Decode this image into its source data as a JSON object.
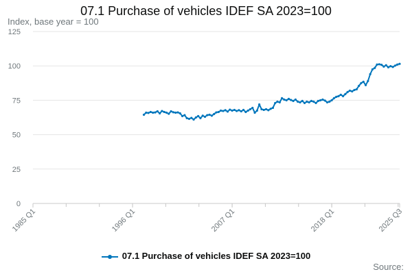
{
  "chart_data": {
    "type": "line",
    "title": "07.1 Purchase of vehicles IDEF SA 2023=100",
    "unit_label": "Index, base year = 100",
    "source_label": "Source:",
    "legend": "07.1 Purchase of vehicles IDEF SA 2023=100",
    "ylim": [
      0,
      125
    ],
    "yticks": [
      0,
      25,
      50,
      75,
      100,
      125
    ],
    "xticks": [
      "1985 Q1",
      "1996 Q1",
      "2007 Q1",
      "2018 Q1",
      "2025 Q3"
    ],
    "xtick_years": [
      1985.0,
      1996.0,
      2007.0,
      2018.0,
      2025.5
    ],
    "xrange": [
      1985.0,
      2025.5
    ],
    "grid": true,
    "legend_position": "bottom",
    "color": "#0076bc",
    "series": [
      {
        "name": "07.1 Purchase of vehicles IDEF SA 2023=100",
        "points": [
          [
            1997.25,
            64.5
          ],
          [
            1997.5,
            66.0
          ],
          [
            1997.75,
            65.8
          ],
          [
            1998.0,
            66.5
          ],
          [
            1998.25,
            66.0
          ],
          [
            1998.5,
            66.2
          ],
          [
            1998.75,
            67.0
          ],
          [
            1999.0,
            65.5
          ],
          [
            1999.25,
            67.2
          ],
          [
            1999.5,
            66.5
          ],
          [
            1999.75,
            66.0
          ],
          [
            2000.0,
            65.2
          ],
          [
            2000.25,
            67.0
          ],
          [
            2000.5,
            66.3
          ],
          [
            2000.75,
            66.0
          ],
          [
            2001.0,
            66.2
          ],
          [
            2001.25,
            65.5
          ],
          [
            2001.5,
            63.5
          ],
          [
            2001.75,
            64.2
          ],
          [
            2002.0,
            62.0
          ],
          [
            2002.25,
            61.5
          ],
          [
            2002.5,
            62.2
          ],
          [
            2002.75,
            61.0
          ],
          [
            2003.0,
            62.5
          ],
          [
            2003.25,
            63.5
          ],
          [
            2003.5,
            62.0
          ],
          [
            2003.75,
            63.8
          ],
          [
            2004.0,
            63.0
          ],
          [
            2004.25,
            64.2
          ],
          [
            2004.5,
            64.5
          ],
          [
            2004.75,
            63.8
          ],
          [
            2005.0,
            65.0
          ],
          [
            2005.25,
            66.2
          ],
          [
            2005.5,
            66.5
          ],
          [
            2005.75,
            67.5
          ],
          [
            2006.0,
            67.2
          ],
          [
            2006.25,
            67.8
          ],
          [
            2006.5,
            66.8
          ],
          [
            2006.75,
            68.2
          ],
          [
            2007.0,
            67.5
          ],
          [
            2007.25,
            68.0
          ],
          [
            2007.5,
            67.2
          ],
          [
            2007.75,
            67.8
          ],
          [
            2008.0,
            67.0
          ],
          [
            2008.25,
            68.0
          ],
          [
            2008.5,
            66.5
          ],
          [
            2008.75,
            67.5
          ],
          [
            2009.0,
            68.5
          ],
          [
            2009.25,
            69.5
          ],
          [
            2009.5,
            66.0
          ],
          [
            2009.75,
            67.5
          ],
          [
            2010.0,
            72.0
          ],
          [
            2010.25,
            68.5
          ],
          [
            2010.5,
            68.0
          ],
          [
            2010.75,
            68.5
          ],
          [
            2011.0,
            67.8
          ],
          [
            2011.25,
            68.8
          ],
          [
            2011.5,
            69.5
          ],
          [
            2011.75,
            73.0
          ],
          [
            2012.0,
            74.0
          ],
          [
            2012.25,
            73.5
          ],
          [
            2012.5,
            76.5
          ],
          [
            2012.75,
            75.5
          ],
          [
            2013.0,
            75.0
          ],
          [
            2013.25,
            76.0
          ],
          [
            2013.5,
            75.2
          ],
          [
            2013.75,
            74.5
          ],
          [
            2014.0,
            75.5
          ],
          [
            2014.25,
            74.0
          ],
          [
            2014.5,
            73.5
          ],
          [
            2014.75,
            74.5
          ],
          [
            2015.0,
            73.0
          ],
          [
            2015.25,
            74.0
          ],
          [
            2015.5,
            73.5
          ],
          [
            2015.75,
            74.5
          ],
          [
            2016.0,
            74.0
          ],
          [
            2016.25,
            73.0
          ],
          [
            2016.5,
            74.5
          ],
          [
            2016.75,
            75.0
          ],
          [
            2017.0,
            75.5
          ],
          [
            2017.25,
            74.8
          ],
          [
            2017.5,
            73.5
          ],
          [
            2017.75,
            74.0
          ],
          [
            2018.0,
            75.0
          ],
          [
            2018.25,
            76.5
          ],
          [
            2018.5,
            77.5
          ],
          [
            2018.75,
            78.0
          ],
          [
            2019.0,
            79.0
          ],
          [
            2019.25,
            78.0
          ],
          [
            2019.5,
            79.5
          ],
          [
            2019.75,
            81.0
          ],
          [
            2020.0,
            82.0
          ],
          [
            2020.25,
            81.5
          ],
          [
            2020.5,
            82.5
          ],
          [
            2020.75,
            83.0
          ],
          [
            2021.0,
            85.5
          ],
          [
            2021.25,
            87.5
          ],
          [
            2021.5,
            88.5
          ],
          [
            2021.75,
            86.0
          ],
          [
            2022.0,
            89.0
          ],
          [
            2022.25,
            94.0
          ],
          [
            2022.5,
            97.5
          ],
          [
            2022.75,
            98.5
          ],
          [
            2023.0,
            101.0
          ],
          [
            2023.25,
            101.2
          ],
          [
            2023.5,
            100.8
          ],
          [
            2023.75,
            99.5
          ],
          [
            2024.0,
            100.5
          ],
          [
            2024.25,
            99.0
          ],
          [
            2024.5,
            99.8
          ],
          [
            2024.75,
            99.2
          ],
          [
            2025.0,
            100.2
          ],
          [
            2025.25,
            101.0
          ],
          [
            2025.5,
            101.5
          ]
        ]
      }
    ]
  }
}
